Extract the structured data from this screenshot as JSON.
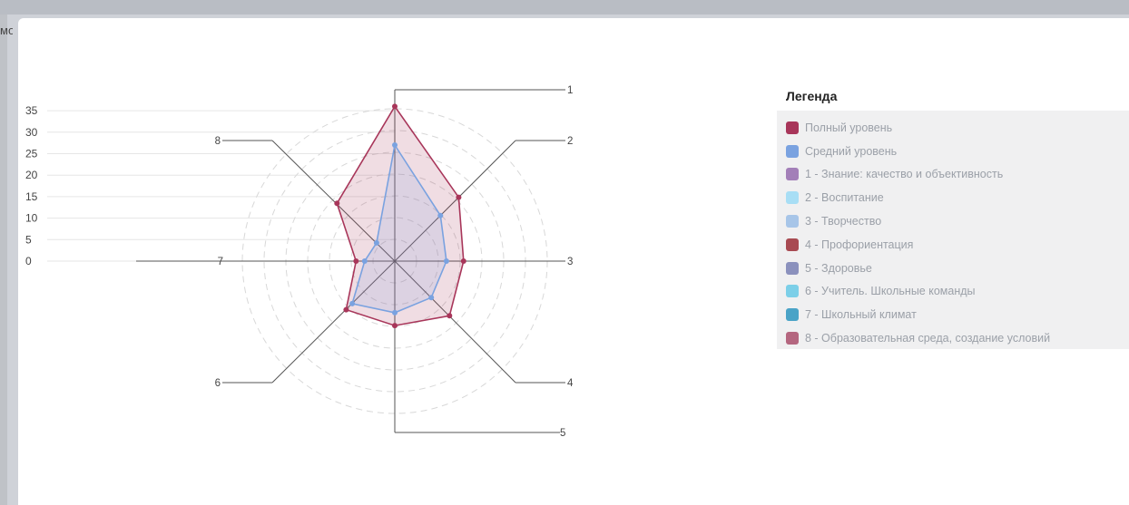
{
  "header": {
    "stray_text": "мо"
  },
  "legend": {
    "title": "Легенда",
    "items": [
      {
        "label": "Полный уровень",
        "color": "#a8365a"
      },
      {
        "label": "Средний уровень",
        "color": "#7aa2e0"
      },
      {
        "label": "1 - Знание: качество и объективность",
        "color": "#a37fb8"
      },
      {
        "label": "2 - Воспитание",
        "color": "#a8def5"
      },
      {
        "label": "3 - Творчество",
        "color": "#a7c5e8"
      },
      {
        "label": "4 - Профориентация",
        "color": "#a84a52"
      },
      {
        "label": "5 - Здоровье",
        "color": "#8b91bd"
      },
      {
        "label": "6 - Учитель. Школьные команды",
        "color": "#7ccfe8"
      },
      {
        "label": "7 - Школьный климат",
        "color": "#4aa3c7"
      },
      {
        "label": "8 - Образовательная среда, создание условий",
        "color": "#b4667f"
      }
    ]
  },
  "chart_data": {
    "type": "radar",
    "axes": [
      "1",
      "2",
      "3",
      "4",
      "5",
      "6",
      "7",
      "8"
    ],
    "y_ticks": [
      "35",
      "30",
      "25",
      "20",
      "15",
      "10",
      "5",
      "0"
    ],
    "series": [
      {
        "name": "Полный уровень",
        "color": "#a8365a",
        "values": [
          36,
          21,
          16,
          18,
          15,
          16,
          9,
          19
        ]
      },
      {
        "name": "Средний уровень",
        "color": "#7aa2e0",
        "values": [
          27,
          15,
          12,
          12,
          12,
          14,
          7,
          6
        ]
      }
    ]
  }
}
